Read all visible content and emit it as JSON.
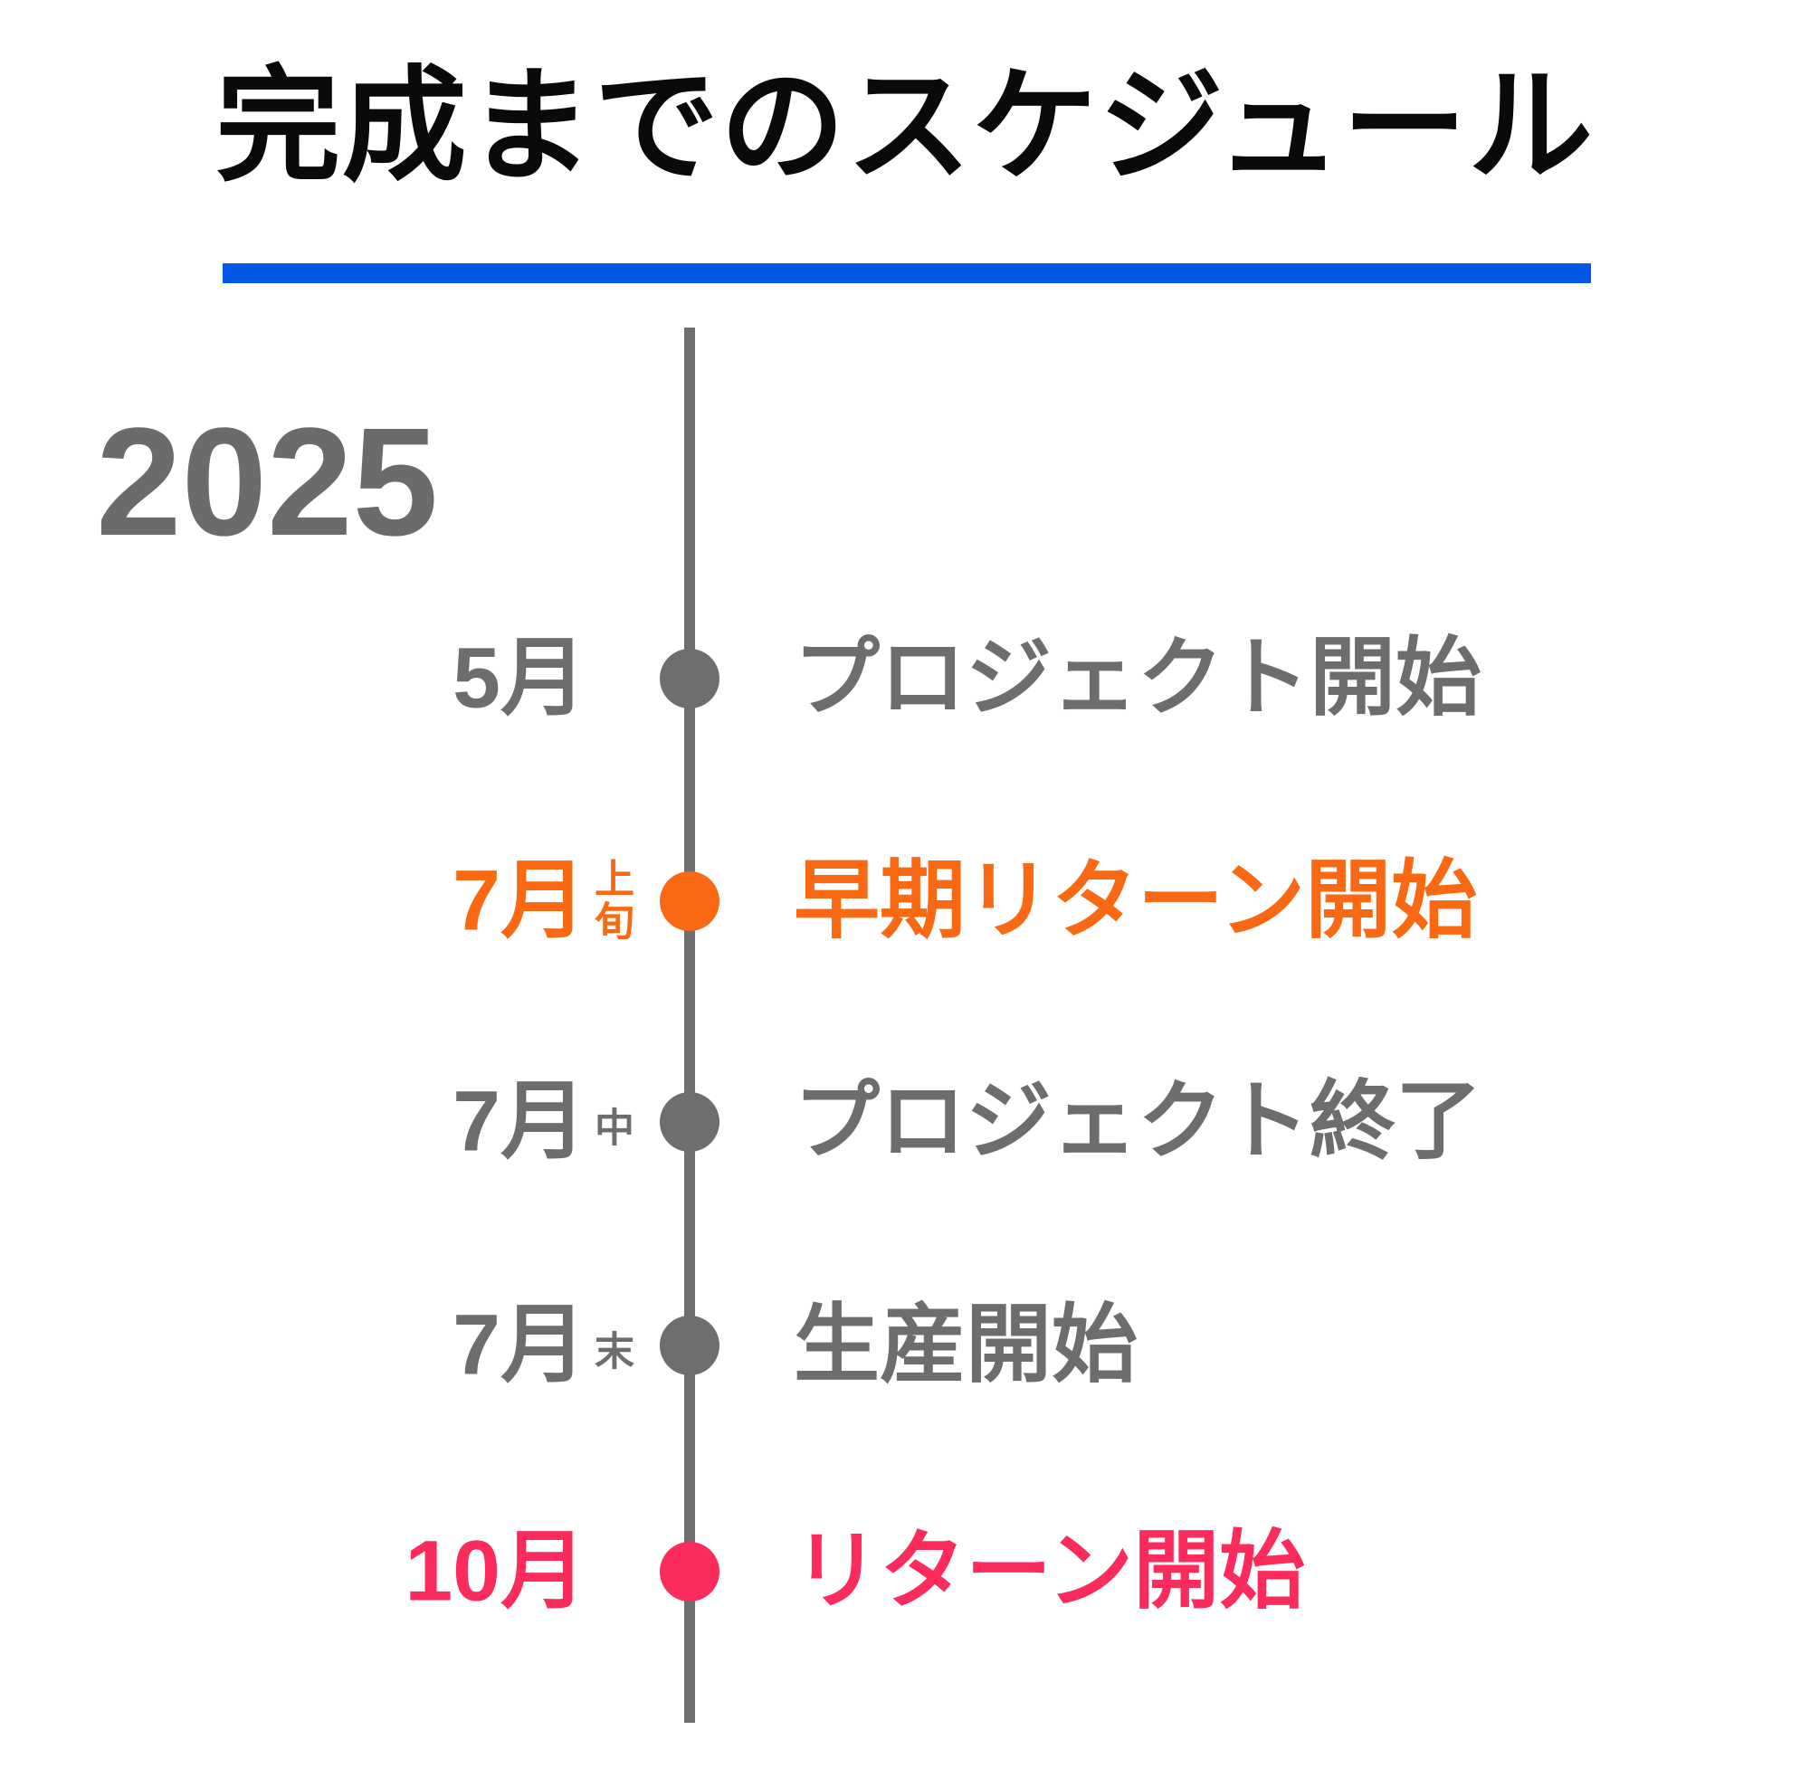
{
  "page": {
    "title": "完成までのスケジュール",
    "year": "2025"
  },
  "palette": {
    "title_black": "#0A0A0A",
    "underline_blue": "#0557E8",
    "timeline_gray": "#6E6E6E",
    "text_gray": "#6D6D6D",
    "accent_orange": "#F96914",
    "accent_pink": "#FB2C5C",
    "background": "#FFFFFF"
  },
  "timeline": {
    "entries": [
      {
        "month": "5月",
        "event": "プロジェクト開始",
        "color": "gray"
      },
      {
        "month": "7月",
        "sub_top": "上",
        "sub_bottom": "旬",
        "event": "早期リターン開始",
        "color": "orange"
      },
      {
        "month": "7月",
        "sub": "中",
        "event": "プロジェクト終了",
        "color": "gray"
      },
      {
        "month": "7月",
        "sub": "末",
        "event": "生産開始",
        "color": "gray"
      },
      {
        "month": "10月",
        "event": "リターン開始",
        "color": "pink"
      }
    ]
  }
}
